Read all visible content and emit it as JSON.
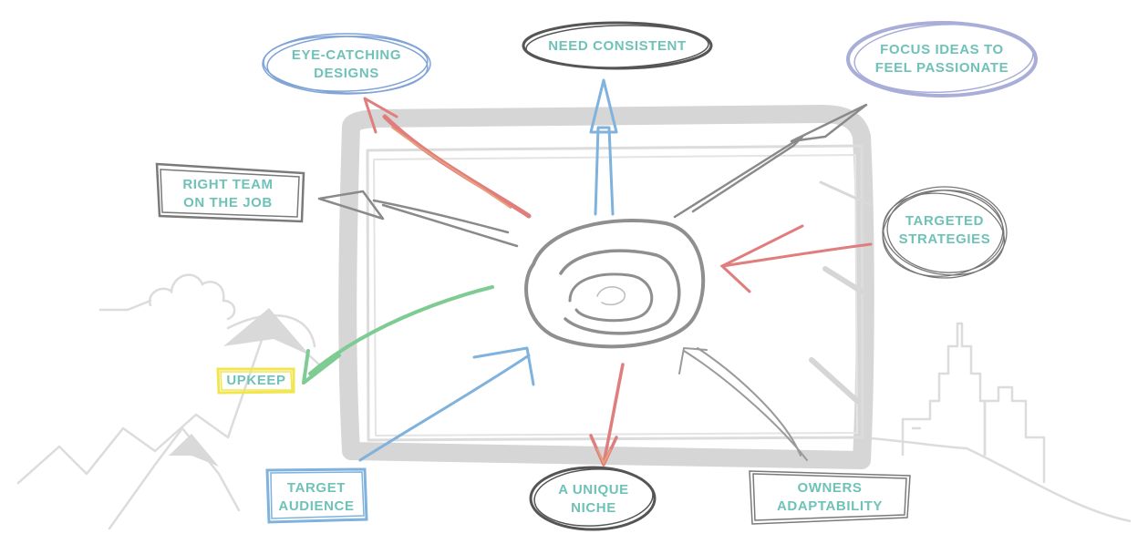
{
  "labels": {
    "eye_catching": [
      "EYE-CATCHING",
      "DESIGNS"
    ],
    "need_consistent": [
      "NEED CONSISTENT"
    ],
    "focus_ideas": [
      "FOCUS IDEAS TO",
      "FEEL PASSIONATE"
    ],
    "right_team": [
      "RIGHT TEAM",
      "ON THE JOB"
    ],
    "targeted_strategies": [
      "TARGETED",
      "STRATEGIES"
    ],
    "upkeep": [
      "UPKEEP"
    ],
    "target_audience": [
      "TARGET",
      "AUDIENCE"
    ],
    "unique_niche": [
      "A UNIQUE",
      "NICHE"
    ],
    "owners_adaptability": [
      "OWNERS",
      "ADAPTABILITY"
    ]
  },
  "colors": {
    "label_text": "#6fc2b8",
    "sketch_gray": "#d9d9d9",
    "dark_gray": "#6e6e6e",
    "red": "#e07d7d",
    "blue": "#7fb2dc",
    "green": "#7ecb94",
    "yellow": "#f2e650",
    "purple": "#a9aed8",
    "orange": "#e8a07a"
  }
}
